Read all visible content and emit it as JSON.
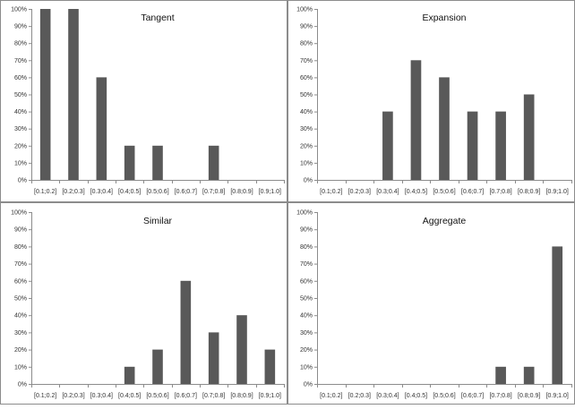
{
  "chart_data": [
    {
      "type": "bar",
      "title": "Tangent",
      "categories": [
        "[0.1;0.2]",
        "[0.2;0.3]",
        "[0.3;0.4]",
        "[0.4;0.5]",
        "[0.5;0.6]",
        "[0.6;0.7]",
        "[0.7;0.8]",
        "[0.8;0.9]",
        "[0.9;1.0]"
      ],
      "values": [
        100,
        100,
        60,
        20,
        20,
        0,
        20,
        0,
        0
      ],
      "ylim": [
        0,
        100
      ],
      "yticks": [
        "0%",
        "10%",
        "20%",
        "30%",
        "40%",
        "50%",
        "60%",
        "70%",
        "80%",
        "90%",
        "100%"
      ],
      "bar_color": "#595959",
      "grid": false
    },
    {
      "type": "bar",
      "title": "Expansion",
      "categories": [
        "[0.1;0.2]",
        "[0.2;0.3]",
        "[0.3;0.4]",
        "[0.4;0.5]",
        "[0.5;0.6]",
        "[0.6;0.7]",
        "[0.7;0.8]",
        "[0.8;0.9]",
        "[0.9;1.0]"
      ],
      "values": [
        0,
        0,
        40,
        70,
        60,
        40,
        40,
        50,
        0
      ],
      "ylim": [
        0,
        100
      ],
      "yticks": [
        "0%",
        "10%",
        "20%",
        "30%",
        "40%",
        "50%",
        "60%",
        "70%",
        "80%",
        "90%",
        "100%"
      ],
      "bar_color": "#595959",
      "grid": false
    },
    {
      "type": "bar",
      "title": "Similar",
      "categories": [
        "[0.1;0.2]",
        "[0.2;0.3]",
        "[0.3;0.4]",
        "[0.4;0.5]",
        "[0.5;0.6]",
        "[0.6;0.7]",
        "[0.7;0.8]",
        "[0.8;0.9]",
        "[0.9;1.0]"
      ],
      "values": [
        0,
        0,
        0,
        10,
        20,
        60,
        30,
        40,
        20
      ],
      "ylim": [
        0,
        100
      ],
      "yticks": [
        "0%",
        "10%",
        "20%",
        "30%",
        "40%",
        "50%",
        "60%",
        "70%",
        "80%",
        "90%",
        "100%"
      ],
      "bar_color": "#595959",
      "grid": false
    },
    {
      "type": "bar",
      "title": "Aggregate",
      "categories": [
        "[0.1;0.2]",
        "[0.2;0.3]",
        "[0.3;0.4]",
        "[0.4;0.5]",
        "[0.5;0.6]",
        "[0.6;0.7]",
        "[0.7;0.8]",
        "[0.8;0.9]",
        "[0.9;1.0]"
      ],
      "values": [
        0,
        0,
        0,
        0,
        0,
        0,
        10,
        10,
        80
      ],
      "ylim": [
        0,
        100
      ],
      "yticks": [
        "0%",
        "10%",
        "20%",
        "30%",
        "40%",
        "50%",
        "60%",
        "70%",
        "80%",
        "90%",
        "100%"
      ],
      "bar_color": "#595959",
      "grid": false
    }
  ]
}
